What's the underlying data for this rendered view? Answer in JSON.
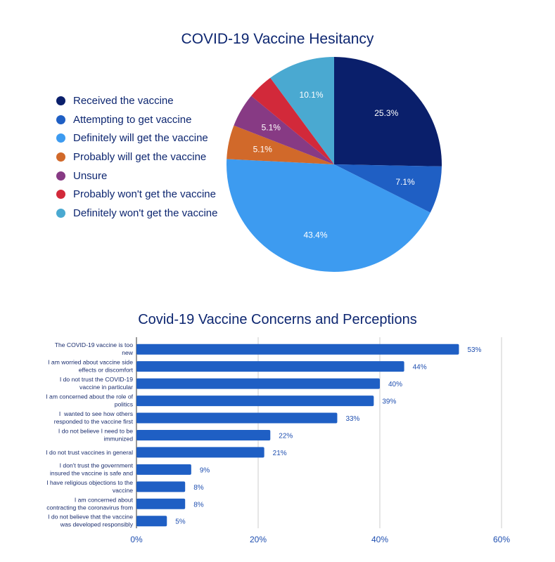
{
  "chart_data": [
    {
      "type": "pie",
      "title": "COVID-19 Vaccine Hesitancy",
      "legend_position": "left",
      "slices": [
        {
          "label": "Received the vaccine",
          "value": 25.3,
          "display": "25.3%",
          "color": "#0a1f6b"
        },
        {
          "label": "Attempting to get vaccine",
          "value": 7.1,
          "display": "7.1%",
          "color": "#1f5fc4"
        },
        {
          "label": "Definitely will get the vaccine",
          "value": 43.4,
          "display": "43.4%",
          "color": "#3d9bf0"
        },
        {
          "label": "Probably will get the vaccine",
          "value": 5.1,
          "display": "5.1%",
          "color": "#d1692a"
        },
        {
          "label": "Unsure",
          "value": 5.1,
          "display": "5.1%",
          "color": "#873a84"
        },
        {
          "label": "Probably won't get the vaccine",
          "value": 3.9,
          "display": null,
          "color": "#d2293a"
        },
        {
          "label": "Definitely won't get the vaccine",
          "value": 10.1,
          "display": "10.1%",
          "color": "#4aa9d1"
        }
      ]
    },
    {
      "type": "bar",
      "orientation": "horizontal",
      "title": "Covid-19 Vaccine Concerns and Perceptions",
      "xlim": [
        0,
        60
      ],
      "xticks": [
        0,
        20,
        40,
        60
      ],
      "xtick_labels": [
        "0%",
        "20%",
        "40%",
        "60%"
      ],
      "grid": true,
      "color": "#1f5fc4",
      "categories": [
        [
          "The COVID-19 vaccine is too",
          "new"
        ],
        [
          "I am worried about vaccine side",
          "effects or discomfort"
        ],
        [
          "I do not trust the COVID-19",
          "vaccine in particular"
        ],
        [
          "I am concerned about the role of",
          "politics"
        ],
        [
          "I  wanted to see how others",
          "responded to the vaccine first"
        ],
        [
          "I do not believe I need to be",
          "immunized"
        ],
        [
          "I do not trust vaccines in general"
        ],
        [
          "I don't trust the government",
          "insured the vaccine is safe and"
        ],
        [
          "I have religious objections to the",
          "vaccine"
        ],
        [
          "I am concerned about",
          "contracting the coronavirus from"
        ],
        [
          "I do not believe that the vaccine",
          "was developed responsibly"
        ]
      ],
      "values": [
        53,
        44,
        40,
        39,
        33,
        22,
        21,
        9,
        8,
        8,
        5
      ],
      "value_labels": [
        "53%",
        "44%",
        "40%",
        "39%",
        "33%",
        "22%",
        "21%",
        "9%",
        "8%",
        "8%",
        "5%"
      ]
    }
  ]
}
